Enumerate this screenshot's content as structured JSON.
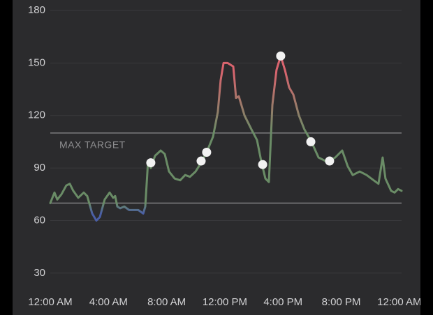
{
  "chart_data": {
    "type": "line",
    "x": [
      0.0,
      0.29,
      0.48,
      0.77,
      1.1,
      1.34,
      1.58,
      1.92,
      2.3,
      2.54,
      2.88,
      3.17,
      3.41,
      3.74,
      4.08,
      4.32,
      4.46,
      4.61,
      4.8,
      5.09,
      5.42,
      5.76,
      6.05,
      6.39,
      6.53,
      6.72,
      6.91,
      7.2,
      7.59,
      7.87,
      8.16,
      8.55,
      8.93,
      9.27,
      9.6,
      9.99,
      10.37,
      10.75,
      11.19,
      11.52,
      11.71,
      11.91,
      12.19,
      12.58,
      12.77,
      12.96,
      13.35,
      13.83,
      14.21,
      14.5,
      14.79,
      15.03,
      15.27,
      15.55,
      15.84,
      16.13,
      16.42,
      16.71,
      17.09,
      17.47,
      17.95,
      18.44,
      18.92,
      19.2,
      19.59,
      20.07,
      20.45,
      20.79,
      21.27,
      21.75,
      22.23,
      22.56,
      22.85,
      23.04,
      23.43,
      23.67,
      23.91,
      24.15
    ],
    "values": [
      70,
      76,
      72,
      75,
      80,
      81,
      77,
      73,
      76,
      74,
      64,
      60,
      62,
      72,
      76,
      73,
      74,
      68,
      67,
      68,
      66,
      66,
      66,
      64,
      68,
      94,
      90,
      97,
      100,
      98,
      88,
      84,
      83,
      86,
      85,
      88,
      93,
      99,
      108,
      122,
      140,
      150,
      150,
      148,
      130,
      131,
      120,
      112,
      106,
      94,
      84,
      82,
      126,
      146,
      154,
      146,
      136,
      132,
      120,
      112,
      105,
      96,
      94,
      94,
      96,
      100,
      91,
      86,
      88,
      86,
      83,
      81,
      96,
      84,
      77,
      76,
      78,
      77
    ],
    "markers": {
      "x": [
        6.91,
        10.37,
        10.75,
        14.6,
        15.84,
        17.91,
        19.2
      ],
      "values": [
        93,
        94,
        99,
        92,
        154,
        105,
        94
      ],
      "color": "#f2f2f2"
    },
    "colors": {
      "low": "#4a5ea6",
      "in_range": "#6a8c66",
      "high": "#d9646e"
    },
    "max_target": {
      "value": 110,
      "label": "MAX TARGET"
    },
    "min_target": 70,
    "target_color": "#8e8e90",
    "grid": true,
    "xlim": [
      0,
      24.15
    ],
    "xticks": [
      {
        "value": 0,
        "label": "12:00 AM"
      },
      {
        "value": 4,
        "label": "4:00 AM"
      },
      {
        "value": 8,
        "label": "8:00 AM"
      },
      {
        "value": 12,
        "label": "12:00 PM"
      },
      {
        "value": 16,
        "label": "4:00 PM"
      },
      {
        "value": 20,
        "label": "8:00 PM"
      },
      {
        "value": 24,
        "label": "12:00 AM"
      }
    ],
    "ylim": [
      18,
      180
    ],
    "yticks": [
      30,
      60,
      90,
      120,
      150,
      180
    ]
  }
}
